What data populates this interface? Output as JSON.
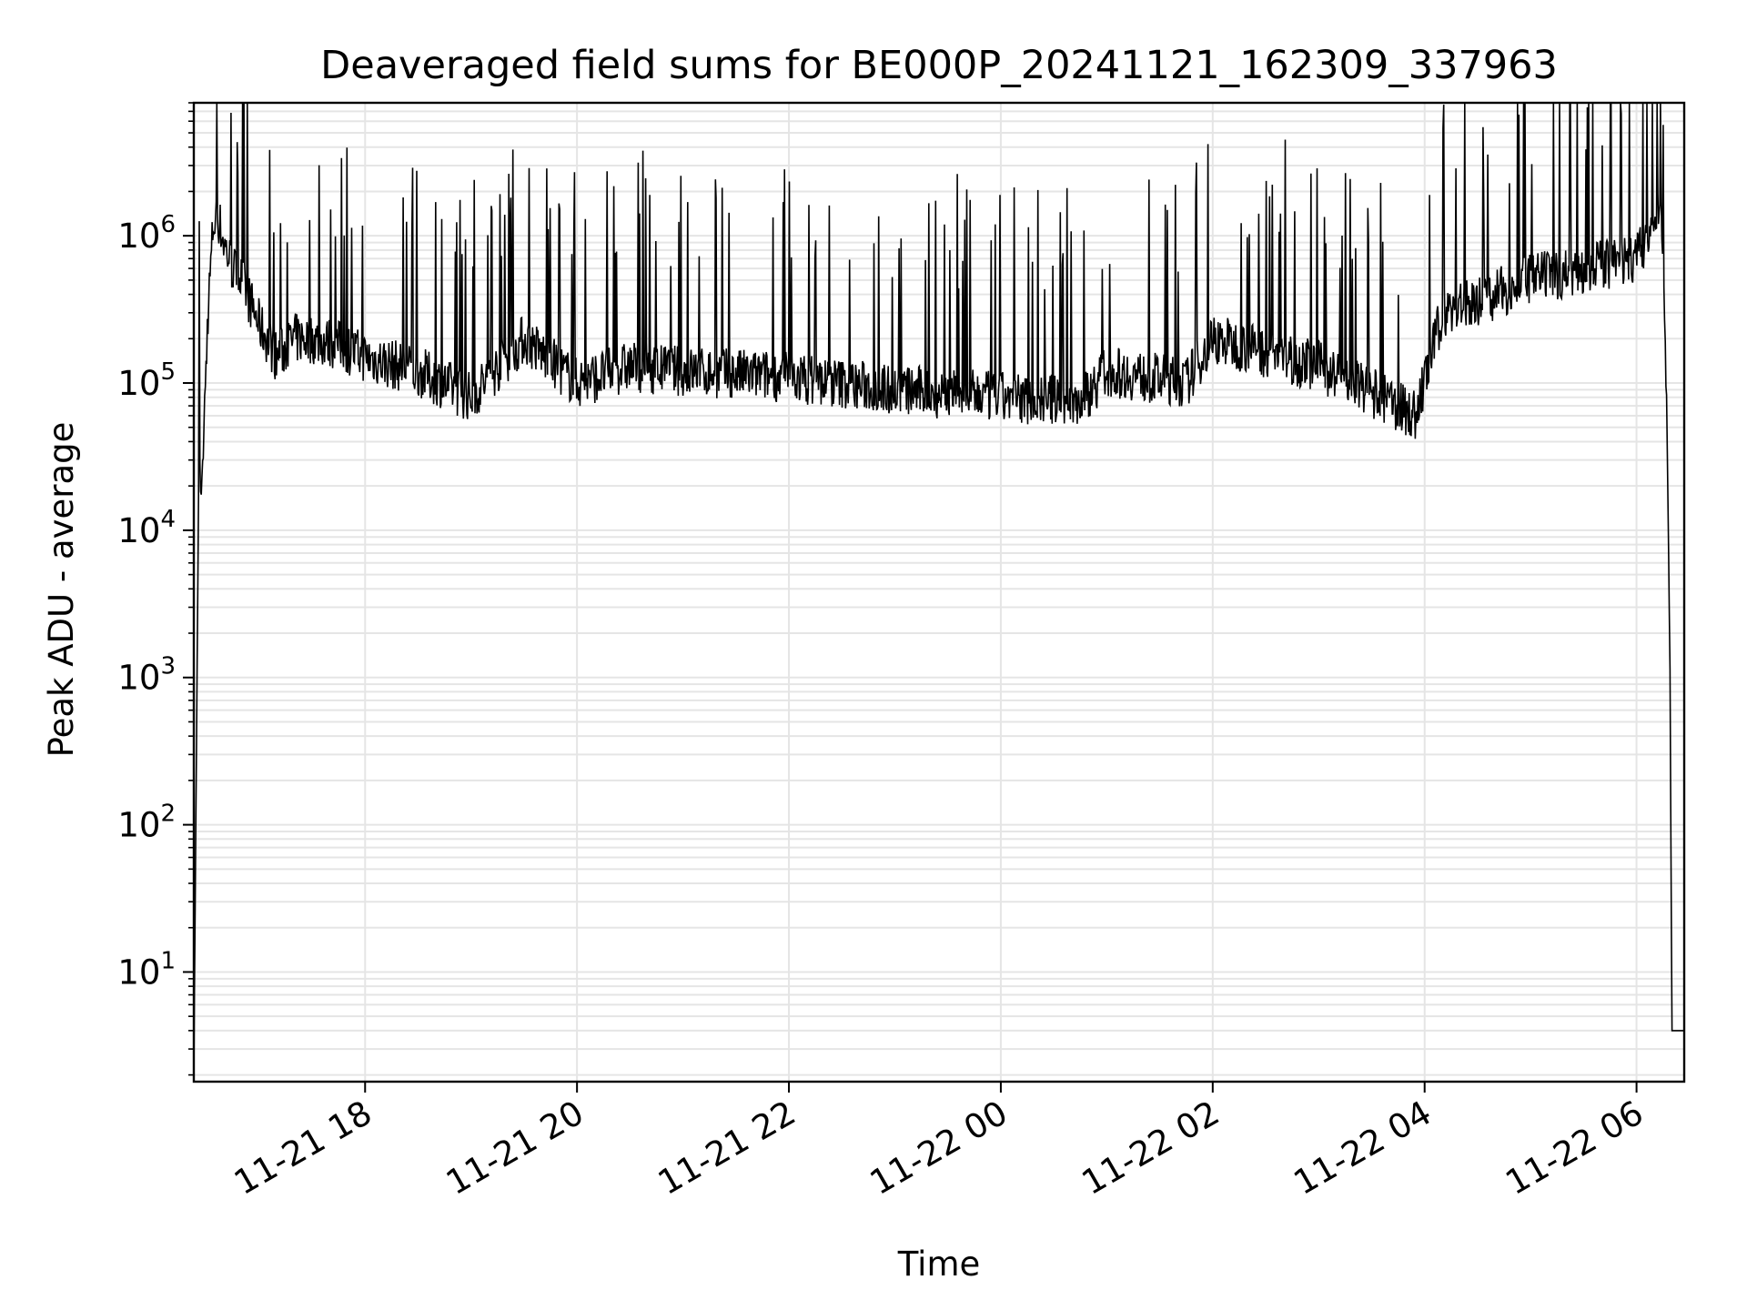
{
  "chart_data": {
    "type": "line",
    "title": "Deaveraged field sums for BE000P_20241121_162309_337963",
    "xlabel": "Time",
    "ylabel": "Peak ADU - average",
    "y_scale": "log",
    "ylim": [
      1.8,
      8000000
    ],
    "xlim": [
      "2024-11-21 16:23",
      "2024-11-22 06:27"
    ],
    "grid": true,
    "line_color": "#000000",
    "grid_color": "#e5e5e5",
    "x_ticks": [
      "11-21 18",
      "11-21 20",
      "11-21 22",
      "11-22 00",
      "11-22 02",
      "11-22 04",
      "11-22 06"
    ],
    "x_tick_times": [
      "2024-11-21 18:00",
      "2024-11-21 20:00",
      "2024-11-21 22:00",
      "2024-11-22 00:00",
      "2024-11-22 02:00",
      "2024-11-22 04:00",
      "2024-11-22 06:00"
    ],
    "y_tick_mantissa": [
      "10",
      "10",
      "10",
      "10",
      "10",
      "10"
    ],
    "y_tick_exponents": [
      "1",
      "2",
      "3",
      "4",
      "5",
      "6"
    ],
    "y_tick_values": [
      10,
      100,
      1000,
      10000,
      100000,
      1000000
    ],
    "series": [
      {
        "x": [
          "2024-11-21 16:23",
          "2024-11-21 16:26",
          "2024-11-21 16:27",
          "2024-11-21 16:29",
          "2024-11-21 16:31",
          "2024-11-21 16:34",
          "2024-11-21 16:37",
          "2024-11-21 16:40",
          "2024-11-21 16:45",
          "2024-11-21 16:50",
          "2024-11-21 17:00",
          "2024-11-21 17:10",
          "2024-11-21 17:20",
          "2024-11-21 17:30",
          "2024-11-21 17:45",
          "2024-11-21 18:00",
          "2024-11-21 18:30",
          "2024-11-21 19:00",
          "2024-11-21 19:30",
          "2024-11-21 20:00",
          "2024-11-21 20:30",
          "2024-11-21 21:00",
          "2024-11-21 22:00",
          "2024-11-21 23:00",
          "2024-11-22 00:00",
          "2024-11-22 00:45",
          "2024-11-22 01:00",
          "2024-11-22 01:45",
          "2024-11-22 02:00",
          "2024-11-22 03:00",
          "2024-11-22 03:55",
          "2024-11-22 04:10",
          "2024-11-22 04:40",
          "2024-11-22 05:00",
          "2024-11-22 05:30",
          "2024-11-22 06:00",
          "2024-11-22 06:10",
          "2024-11-22 06:14",
          "2024-11-22 06:17",
          "2024-11-22 06:19",
          "2024-11-22 06:20",
          "2024-11-22 06:27"
        ],
        "y": [
          2,
          50000,
          15000,
          60000,
          300000,
          1200000,
          1300000,
          900000,
          600000,
          500000,
          250000,
          150000,
          200000,
          200000,
          180000,
          150000,
          120000,
          80000,
          200000,
          100000,
          130000,
          120000,
          110000,
          90000,
          80000,
          75000,
          120000,
          100000,
          200000,
          130000,
          60000,
          300000,
          400000,
          500000,
          600000,
          700000,
          1200000,
          1500000,
          100000,
          1000,
          4,
          4
        ]
      }
    ]
  }
}
